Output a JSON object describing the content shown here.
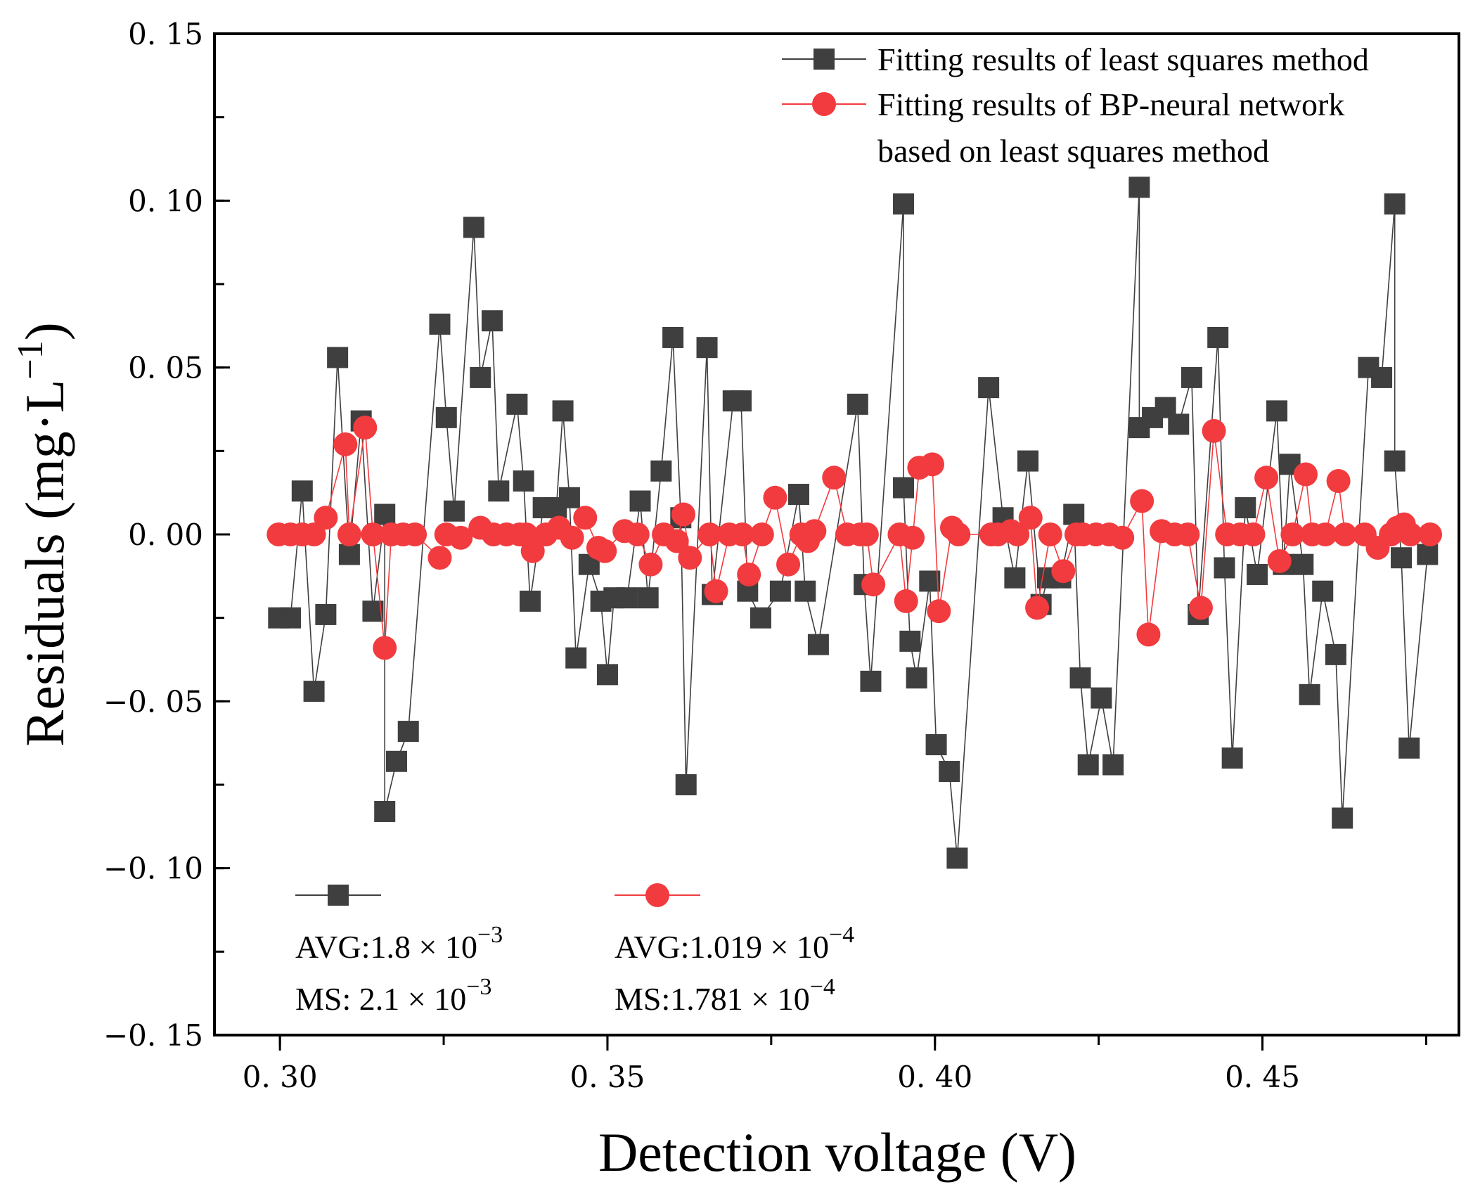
{
  "chart_data": {
    "type": "line",
    "xlabel": "Detection voltage (V)",
    "ylabel": "Residuals (mg·L",
    "ylabel_sup": "−1",
    "ylabel_close": ")",
    "xlim": [
      0.29,
      0.48
    ],
    "ylim": [
      -0.15,
      0.15
    ],
    "x_ticks": [
      0.3,
      0.35,
      0.4,
      0.45
    ],
    "x_tick_labels": [
      "0. 30",
      "0. 35",
      "0. 40",
      "0. 45"
    ],
    "y_ticks": [
      0.15,
      0.1,
      0.05,
      0.0,
      -0.05,
      -0.1,
      -0.15
    ],
    "y_tick_labels": [
      "0. 15",
      "0. 10",
      "0. 05",
      "0. 00",
      "−0. 05",
      "−0. 10",
      "−0. 15"
    ],
    "grid": false,
    "legend_position": "top-right",
    "series": [
      {
        "name": "Fitting results of least squares method",
        "color": "#3f3f3f",
        "marker": "square",
        "points": [
          [
            0.2998,
            -0.025
          ],
          [
            0.3016,
            -0.025
          ],
          [
            0.3034,
            0.013
          ],
          [
            0.3052,
            -0.047
          ],
          [
            0.307,
            -0.024
          ],
          [
            0.3088,
            0.053
          ],
          [
            0.3106,
            -0.006
          ],
          [
            0.3124,
            0.034
          ],
          [
            0.3142,
            -0.023
          ],
          [
            0.316,
            0.006
          ],
          [
            0.316,
            -0.083
          ],
          [
            0.3178,
            -0.068
          ],
          [
            0.3196,
            -0.059
          ],
          [
            0.3244,
            0.063
          ],
          [
            0.3254,
            0.035
          ],
          [
            0.3266,
            0.007
          ],
          [
            0.3296,
            0.092
          ],
          [
            0.3306,
            0.047
          ],
          [
            0.3324,
            0.064
          ],
          [
            0.3334,
            0.013
          ],
          [
            0.3362,
            0.039
          ],
          [
            0.3372,
            0.016
          ],
          [
            0.3382,
            -0.02
          ],
          [
            0.3402,
            0.008
          ],
          [
            0.3422,
            0.008
          ],
          [
            0.3432,
            0.037
          ],
          [
            0.3442,
            0.011
          ],
          [
            0.3452,
            -0.037
          ],
          [
            0.3472,
            -0.009
          ],
          [
            0.349,
            -0.02
          ],
          [
            0.35,
            -0.042
          ],
          [
            0.351,
            -0.019
          ],
          [
            0.353,
            -0.019
          ],
          [
            0.355,
            0.01
          ],
          [
            0.3562,
            -0.019
          ],
          [
            0.3582,
            0.019
          ],
          [
            0.36,
            0.059
          ],
          [
            0.3612,
            0.005
          ],
          [
            0.362,
            -0.075
          ],
          [
            0.3652,
            0.056
          ],
          [
            0.366,
            -0.018
          ],
          [
            0.3692,
            0.04
          ],
          [
            0.3704,
            0.04
          ],
          [
            0.3714,
            -0.017
          ],
          [
            0.3734,
            -0.025
          ],
          [
            0.3764,
            -0.017
          ],
          [
            0.3792,
            0.012
          ],
          [
            0.3802,
            -0.017
          ],
          [
            0.3822,
            -0.033
          ],
          [
            0.3882,
            0.039
          ],
          [
            0.3892,
            -0.015
          ],
          [
            0.3902,
            -0.044
          ],
          [
            0.3952,
            0.099
          ],
          [
            0.3952,
            0.014
          ],
          [
            0.3962,
            -0.032
          ],
          [
            0.3972,
            -0.043
          ],
          [
            0.3992,
            -0.014
          ],
          [
            0.4002,
            -0.063
          ],
          [
            0.4022,
            -0.071
          ],
          [
            0.4034,
            -0.097
          ],
          [
            0.4082,
            0.044
          ],
          [
            0.4104,
            0.005
          ],
          [
            0.4122,
            -0.013
          ],
          [
            0.4142,
            0.022
          ],
          [
            0.4162,
            -0.021
          ],
          [
            0.4172,
            -0.013
          ],
          [
            0.4192,
            -0.013
          ],
          [
            0.4212,
            0.006
          ],
          [
            0.4222,
            -0.043
          ],
          [
            0.4234,
            -0.069
          ],
          [
            0.4254,
            -0.049
          ],
          [
            0.4272,
            -0.069
          ],
          [
            0.4312,
            0.104
          ],
          [
            0.4312,
            0.032
          ],
          [
            0.4332,
            0.035
          ],
          [
            0.4352,
            0.038
          ],
          [
            0.4372,
            0.033
          ],
          [
            0.4392,
            0.047
          ],
          [
            0.4402,
            -0.024
          ],
          [
            0.4432,
            0.059
          ],
          [
            0.4442,
            -0.01
          ],
          [
            0.4454,
            -0.067
          ],
          [
            0.4474,
            0.008
          ],
          [
            0.4492,
            -0.012
          ],
          [
            0.4522,
            0.037
          ],
          [
            0.4532,
            -0.009
          ],
          [
            0.4542,
            0.021
          ],
          [
            0.4562,
            -0.009
          ],
          [
            0.4572,
            -0.048
          ],
          [
            0.4592,
            -0.017
          ],
          [
            0.4612,
            -0.036
          ],
          [
            0.4622,
            -0.085
          ],
          [
            0.4662,
            0.05
          ],
          [
            0.4682,
            0.047
          ],
          [
            0.4702,
            0.099
          ],
          [
            0.4702,
            0.022
          ],
          [
            0.4712,
            -0.007
          ],
          [
            0.4724,
            -0.064
          ],
          [
            0.4752,
            -0.006
          ]
        ]
      },
      {
        "name": "Fitting results of BP-neural network based on least squares method",
        "name_lines": [
          "Fitting results of BP-neural network",
          "based on least squares method"
        ],
        "color": "#f23b3e",
        "marker": "circle",
        "points": [
          [
            0.2998,
            0.0
          ],
          [
            0.3016,
            0.0
          ],
          [
            0.3034,
            0.0
          ],
          [
            0.3052,
            0.0
          ],
          [
            0.307,
            0.005
          ],
          [
            0.31,
            0.027
          ],
          [
            0.3106,
            0.0
          ],
          [
            0.313,
            0.032
          ],
          [
            0.3142,
            0.0
          ],
          [
            0.316,
            -0.034
          ],
          [
            0.317,
            0.0
          ],
          [
            0.3188,
            0.0
          ],
          [
            0.3206,
            0.0
          ],
          [
            0.3244,
            -0.007
          ],
          [
            0.3254,
            0.0
          ],
          [
            0.3276,
            -0.001
          ],
          [
            0.3306,
            0.002
          ],
          [
            0.3326,
            0.0
          ],
          [
            0.3346,
            0.0
          ],
          [
            0.3366,
            0.0
          ],
          [
            0.3376,
            0.0
          ],
          [
            0.3386,
            -0.005
          ],
          [
            0.3406,
            0.0
          ],
          [
            0.3426,
            0.002
          ],
          [
            0.3446,
            -0.001
          ],
          [
            0.3466,
            0.005
          ],
          [
            0.3486,
            -0.004
          ],
          [
            0.3496,
            -0.005
          ],
          [
            0.3526,
            0.001
          ],
          [
            0.3546,
            0.0
          ],
          [
            0.3566,
            -0.009
          ],
          [
            0.3586,
            0.0
          ],
          [
            0.3606,
            -0.002
          ],
          [
            0.3616,
            0.006
          ],
          [
            0.3626,
            -0.007
          ],
          [
            0.3656,
            0.0
          ],
          [
            0.3666,
            -0.017
          ],
          [
            0.3686,
            0.0
          ],
          [
            0.3706,
            0.0
          ],
          [
            0.3716,
            -0.012
          ],
          [
            0.3736,
            0.0
          ],
          [
            0.3756,
            0.011
          ],
          [
            0.3776,
            -0.009
          ],
          [
            0.3796,
            0.0
          ],
          [
            0.3806,
            -0.002
          ],
          [
            0.3816,
            0.001
          ],
          [
            0.3846,
            0.017
          ],
          [
            0.3866,
            0.0
          ],
          [
            0.3886,
            0.0
          ],
          [
            0.3896,
            0.0
          ],
          [
            0.3906,
            -0.015
          ],
          [
            0.3946,
            0.0
          ],
          [
            0.3956,
            -0.02
          ],
          [
            0.3966,
            -0.001
          ],
          [
            0.3976,
            0.02
          ],
          [
            0.3996,
            0.021
          ],
          [
            0.4006,
            -0.023
          ],
          [
            0.4026,
            0.002
          ],
          [
            0.4036,
            0.0
          ],
          [
            0.4086,
            0.0
          ],
          [
            0.4096,
            0.0
          ],
          [
            0.4116,
            0.001
          ],
          [
            0.4126,
            0.0
          ],
          [
            0.4146,
            0.005
          ],
          [
            0.4156,
            -0.022
          ],
          [
            0.4176,
            0.0
          ],
          [
            0.4196,
            -0.011
          ],
          [
            0.4216,
            0.0
          ],
          [
            0.4226,
            0.0
          ],
          [
            0.4246,
            0.0
          ],
          [
            0.4266,
            0.0
          ],
          [
            0.4286,
            -0.001
          ],
          [
            0.4316,
            0.01
          ],
          [
            0.4326,
            -0.03
          ],
          [
            0.4346,
            0.001
          ],
          [
            0.4366,
            0.0
          ],
          [
            0.4386,
            0.0
          ],
          [
            0.4406,
            -0.022
          ],
          [
            0.4426,
            0.031
          ],
          [
            0.4446,
            0.0
          ],
          [
            0.4466,
            0.0
          ],
          [
            0.4486,
            0.0
          ],
          [
            0.4506,
            0.017
          ],
          [
            0.4526,
            -0.008
          ],
          [
            0.4546,
            0.0
          ],
          [
            0.4566,
            0.018
          ],
          [
            0.4576,
            0.0
          ],
          [
            0.4596,
            0.0
          ],
          [
            0.4616,
            0.016
          ],
          [
            0.4626,
            0.0
          ],
          [
            0.4656,
            0.0
          ],
          [
            0.4676,
            -0.004
          ],
          [
            0.4696,
            0.0
          ],
          [
            0.4706,
            0.002
          ],
          [
            0.4716,
            0.003
          ],
          [
            0.4726,
            0.0
          ],
          [
            0.4756,
            0.0
          ]
        ]
      }
    ],
    "annotations": [
      {
        "series": 0,
        "avg_label": "AVG:1.8 × 10",
        "avg_exp": "−3",
        "ms_label": "MS: 2.1 × 10",
        "ms_exp": "−3"
      },
      {
        "series": 1,
        "avg_label": "AVG:1.019 × 10",
        "avg_exp": "−4",
        "ms_label": "MS:1.781 × 10",
        "ms_exp": "−4"
      }
    ]
  }
}
